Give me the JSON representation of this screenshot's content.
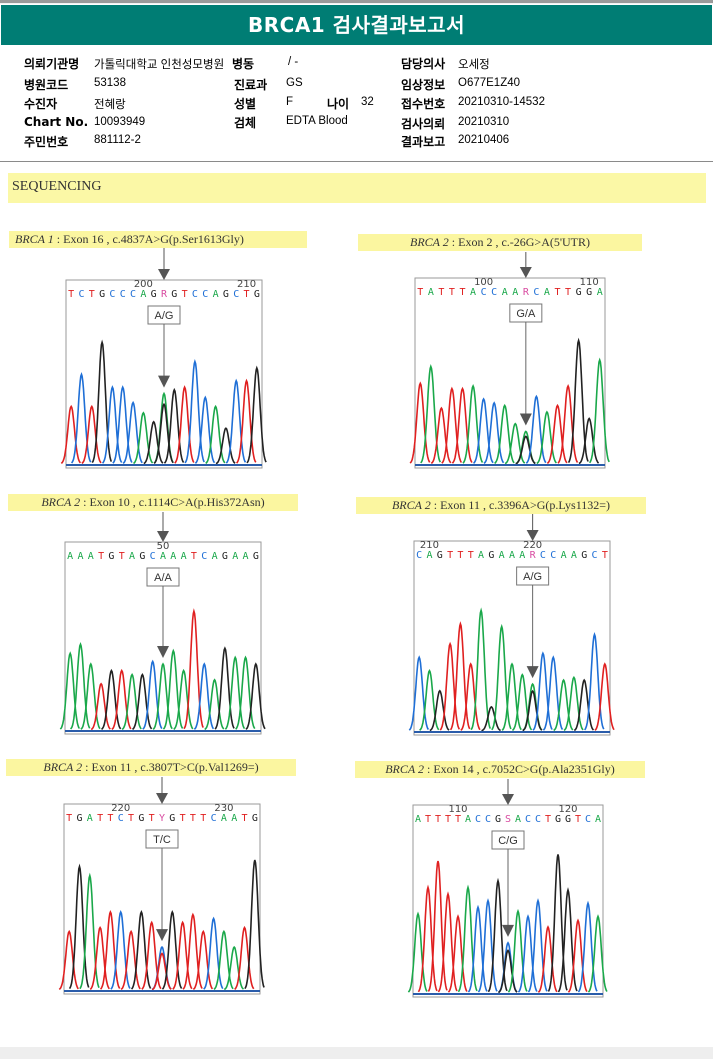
{
  "header": {
    "title": "BRCA1 검사결과보고서",
    "theme_color": "#007d74"
  },
  "patient_info": {
    "left": [
      {
        "label": "의뢰기관명",
        "value": "가톨릭대학교 인천성모병원"
      },
      {
        "label": "병원코드",
        "value": "53138"
      },
      {
        "label": "수진자",
        "value": "전혜랑"
      },
      {
        "label": "Chart No.",
        "value": "10093949"
      },
      {
        "label": "주민번호",
        "value": "881112-2"
      }
    ],
    "middle": [
      {
        "label": "병동",
        "value": "/ -"
      },
      {
        "label": "진료과",
        "value": "GS"
      },
      {
        "label": "성별",
        "value": "F"
      },
      {
        "label": "검체",
        "value": "EDTA Blood"
      }
    ],
    "age": {
      "label": "나이",
      "value": "32"
    },
    "right": [
      {
        "label": "담당의사",
        "value": "오세정"
      },
      {
        "label": "임상정보",
        "value": "O677E1Z40"
      },
      {
        "label": "접수번호",
        "value": "20210310-14532"
      },
      {
        "label": "검사의뢰",
        "value": "20210310"
      },
      {
        "label": "결과보고",
        "value": "20210406"
      }
    ]
  },
  "section": {
    "title": "SEQUENCING"
  },
  "base_colors": {
    "A": "#1aa84a",
    "C": "#1f6fd6",
    "G": "#222222",
    "T": "#e02020",
    "R": "#d84aa0",
    "Y": "#d84aa0",
    "S": "#d84aa0"
  },
  "chart_data": [
    {
      "type": "chromatogram",
      "gene": "BRCA 1",
      "caption": "Exon 16 , c.4837A>G(p.Ser1613Gly)",
      "sequence": "TCTGCCCAGRGTCCAGCTG",
      "position_labels": [
        {
          "text": "200",
          "index": 7
        },
        {
          "text": "210",
          "index": 17
        }
      ],
      "variant_index": 9,
      "genotype": "A/G",
      "peaks": [
        [
          "T",
          0.45
        ],
        [
          "C",
          0.7
        ],
        [
          "T",
          0.45
        ],
        [
          "G",
          0.95
        ],
        [
          "C",
          0.6
        ],
        [
          "C",
          0.6
        ],
        [
          "C",
          0.48
        ],
        [
          "A",
          0.4
        ],
        [
          "G",
          0.33
        ],
        [
          "R",
          0.55
        ],
        [
          "G",
          0.58
        ],
        [
          "T",
          0.6
        ],
        [
          "C",
          0.8
        ],
        [
          "C",
          0.52
        ],
        [
          "A",
          0.45
        ],
        [
          "G",
          0.28
        ],
        [
          "C",
          0.65
        ],
        [
          "T",
          0.65
        ],
        [
          "G",
          0.75
        ]
      ]
    },
    {
      "type": "chromatogram",
      "gene": "BRCA 2",
      "caption": "Exon 2 , c.-26G>A(5'UTR)",
      "sequence": "TATTTACCAARCATTGGA",
      "position_labels": [
        {
          "text": "100",
          "index": 6
        },
        {
          "text": "110",
          "index": 16
        }
      ],
      "variant_index": 10,
      "genotype": "G/A",
      "peaks": [
        [
          "T",
          0.62
        ],
        [
          "A",
          0.75
        ],
        [
          "T",
          0.43
        ],
        [
          "T",
          0.58
        ],
        [
          "T",
          0.58
        ],
        [
          "A",
          0.6
        ],
        [
          "C",
          0.5
        ],
        [
          "C",
          0.47
        ],
        [
          "A",
          0.45
        ],
        [
          "A",
          0.31
        ],
        [
          "R",
          0.25
        ],
        [
          "C",
          0.52
        ],
        [
          "A",
          0.4
        ],
        [
          "T",
          0.45
        ],
        [
          "T",
          0.6
        ],
        [
          "G",
          0.95
        ],
        [
          "G",
          0.35
        ],
        [
          "A",
          0.8
        ]
      ]
    },
    {
      "type": "chromatogram",
      "gene": "BRCA 2",
      "caption": "Exon 10 , c.1114C>A(p.His372Asn)",
      "sequence": "AAATGTAGCAAATCAGAAG",
      "position_labels": [
        {
          "text": "50",
          "index": 9
        }
      ],
      "variant_index": 9,
      "genotype": "A/A",
      "peaks": [
        [
          "A",
          0.58
        ],
        [
          "A",
          0.65
        ],
        [
          "A",
          0.5
        ],
        [
          "T",
          0.35
        ],
        [
          "G",
          0.45
        ],
        [
          "T",
          0.45
        ],
        [
          "A",
          0.42
        ],
        [
          "G",
          0.42
        ],
        [
          "C",
          0.52
        ],
        [
          "A",
          0.5
        ],
        [
          "A",
          0.6
        ],
        [
          "A",
          0.45
        ],
        [
          "T",
          0.9
        ],
        [
          "C",
          0.5
        ],
        [
          "A",
          0.38
        ],
        [
          "G",
          0.62
        ],
        [
          "A",
          0.55
        ],
        [
          "A",
          0.55
        ],
        [
          "G",
          0.5
        ]
      ]
    },
    {
      "type": "chromatogram",
      "gene": "BRCA 2",
      "caption": "Exon 11 , c.3396A>G(p.Lys1132=)",
      "sequence": "CAGTTTAGAAARCCAAGCT",
      "position_labels": [
        {
          "text": "210",
          "index": 1
        },
        {
          "text": "220",
          "index": 11
        }
      ],
      "variant_index": 11,
      "genotype": "A/G",
      "peaks": [
        [
          "C",
          0.55
        ],
        [
          "A",
          0.45
        ],
        [
          "G",
          0.3
        ],
        [
          "T",
          0.65
        ],
        [
          "T",
          0.8
        ],
        [
          "T",
          0.5
        ],
        [
          "A",
          0.9
        ],
        [
          "G",
          0.18
        ],
        [
          "A",
          0.78
        ],
        [
          "A",
          0.5
        ],
        [
          "A",
          0.42
        ],
        [
          "R",
          0.35
        ],
        [
          "C",
          0.58
        ],
        [
          "C",
          0.55
        ],
        [
          "A",
          0.38
        ],
        [
          "A",
          0.4
        ],
        [
          "G",
          0.38
        ],
        [
          "C",
          0.72
        ],
        [
          "T",
          0.5
        ]
      ]
    },
    {
      "type": "chromatogram",
      "gene": "BRCA 2",
      "caption": "Exon 11 , c.3807T>C(p.Val1269=)",
      "sequence": "TGATTCTGTYGTTTCAATG",
      "position_labels": [
        {
          "text": "220",
          "index": 5
        },
        {
          "text": "230",
          "index": 15
        }
      ],
      "variant_index": 9,
      "genotype": "T/C",
      "peaks": [
        [
          "T",
          0.45
        ],
        [
          "G",
          0.95
        ],
        [
          "A",
          0.88
        ],
        [
          "T",
          0.48
        ],
        [
          "T",
          0.6
        ],
        [
          "C",
          0.6
        ],
        [
          "T",
          0.45
        ],
        [
          "G",
          0.6
        ],
        [
          "T",
          0.52
        ],
        [
          "Y",
          0.33
        ],
        [
          "G",
          0.6
        ],
        [
          "T",
          0.52
        ],
        [
          "T",
          0.58
        ],
        [
          "T",
          0.45
        ],
        [
          "C",
          0.55
        ],
        [
          "A",
          0.45
        ],
        [
          "A",
          0.33
        ],
        [
          "T",
          0.48
        ],
        [
          "G",
          1.0
        ]
      ]
    },
    {
      "type": "chromatogram",
      "gene": "BRCA 2",
      "caption": "Exon 14 , c.7052C>G(p.Ala2351Gly)",
      "sequence": "ATTTTACCGSACCTGGTCA",
      "position_labels": [
        {
          "text": "110",
          "index": 4
        },
        {
          "text": "120",
          "index": 15
        }
      ],
      "variant_index": 9,
      "genotype": "C/G",
      "peaks": [
        [
          "A",
          0.6
        ],
        [
          "T",
          0.8
        ],
        [
          "T",
          1.0
        ],
        [
          "T",
          0.75
        ],
        [
          "T",
          0.58
        ],
        [
          "A",
          0.8
        ],
        [
          "C",
          0.65
        ],
        [
          "C",
          0.7
        ],
        [
          "G",
          0.85
        ],
        [
          "S",
          0.38
        ],
        [
          "A",
          0.62
        ],
        [
          "C",
          0.58
        ],
        [
          "C",
          0.7
        ],
        [
          "T",
          0.5
        ],
        [
          "G",
          1.05
        ],
        [
          "G",
          0.78
        ],
        [
          "T",
          0.55
        ],
        [
          "C",
          0.68
        ],
        [
          "A",
          0.58
        ]
      ]
    }
  ]
}
